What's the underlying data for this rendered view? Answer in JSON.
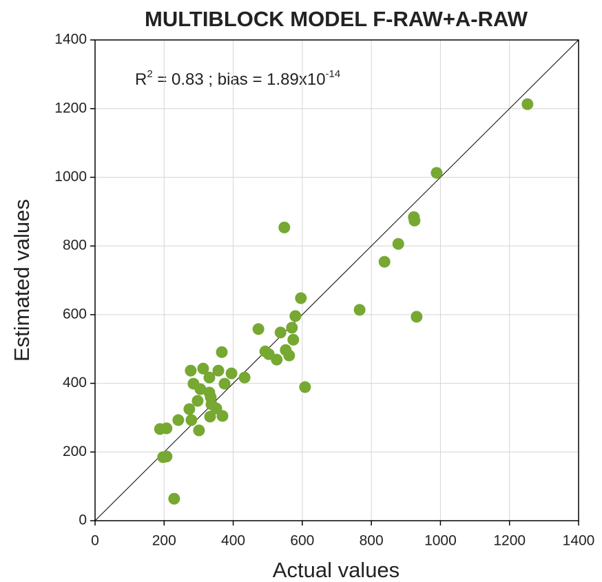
{
  "chart_data": {
    "type": "scatter",
    "title": "MULTIBLOCK MODEL F-RAW+A-RAW",
    "annotation": [
      "R",
      "2",
      " = 0.83 ; bias = 1.89x10",
      "-14"
    ],
    "xlabel": "Actual values",
    "ylabel": "Estimated values",
    "color": "#76a832",
    "grid": true,
    "diagonal": true,
    "xlim": [
      0,
      1400
    ],
    "ylim": [
      0,
      1400
    ],
    "xticks": [
      0,
      200,
      400,
      600,
      800,
      1000,
      1200,
      1400
    ],
    "yticks": [
      0,
      200,
      400,
      600,
      800,
      1000,
      1200,
      1400
    ],
    "x": [
      1252,
      989,
      923,
      925,
      878,
      838,
      766,
      931,
      548,
      596,
      580,
      473,
      537,
      570,
      574,
      367,
      493,
      503,
      552,
      562,
      526,
      395,
      433,
      375,
      608,
      277,
      313,
      331,
      357,
      285,
      305,
      297,
      331,
      335,
      337,
      351,
      369,
      333,
      273,
      279,
      241,
      301,
      188,
      207,
      197,
      207,
      229
    ],
    "values": [
      1213,
      1013,
      884,
      874,
      806,
      754,
      614,
      594,
      854,
      648,
      596,
      558,
      548,
      562,
      527,
      491,
      493,
      485,
      497,
      481,
      469,
      429,
      417,
      399,
      389,
      437,
      443,
      417,
      437,
      399,
      383,
      349,
      373,
      359,
      339,
      327,
      305,
      303,
      325,
      293,
      293,
      263,
      267,
      269,
      185,
      187,
      64
    ]
  }
}
